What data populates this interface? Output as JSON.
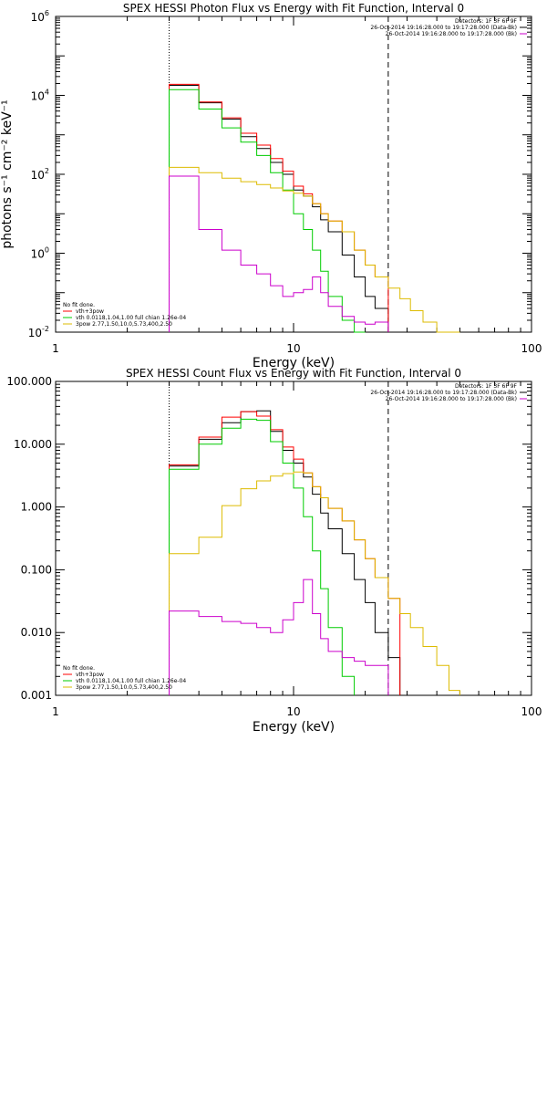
{
  "chart_data": [
    {
      "type": "line",
      "title": "SPEX HESSI Photon Flux vs Energy with Fit Function, Interval 0",
      "xlabel": "Energy (keV)",
      "ylabel": "photons s⁻¹ cm⁻² keV⁻¹",
      "x_scale": "log",
      "y_scale": "log",
      "xlim": [
        1,
        100
      ],
      "ylim": [
        0.01,
        1000000
      ],
      "x_ticks": [
        {
          "v": 1,
          "label": "1"
        },
        {
          "v": 10,
          "label": "10"
        },
        {
          "v": 100,
          "label": "100"
        }
      ],
      "y_ticks": [
        {
          "v": 0.01,
          "base": "10",
          "exp": "-2"
        },
        {
          "v": 1,
          "base": "10",
          "exp": "0"
        },
        {
          "v": 100,
          "base": "10",
          "exp": "2"
        },
        {
          "v": 10000,
          "base": "10",
          "exp": "4"
        },
        {
          "v": 1000000,
          "base": "10",
          "exp": "6"
        }
      ],
      "legend_header": [
        "Detectors: 1F 3F 6F 9F",
        "26-Oct-2014 19:16:28.000 to 19:17:28.000 (Data-Bk)",
        "26-Oct-2014 19:16:28.000 to 19:17:28.000 (Bk)"
      ],
      "legend_header_colors": [
        "",
        "#000000",
        "#cc00cc"
      ],
      "legend_fit": [
        "No fit done.",
        "vth+3pow",
        "vth 0.0118,1.04,1.00 full chian 1.26e-04",
        "3pow 2.77,1.50,10.0,5.73,400,2.50"
      ],
      "legend_fit_colors": [
        "",
        "#ff0000",
        "#00cc00",
        "#ddbb00"
      ],
      "vlines": [
        {
          "x": 3,
          "style": "dotted"
        },
        {
          "x": 25,
          "style": "dashed"
        }
      ],
      "edges": [
        3,
        4,
        5,
        6,
        7,
        8,
        9,
        10,
        11,
        12,
        13,
        14,
        16,
        18,
        20,
        22,
        25,
        28,
        31,
        35,
        40,
        45,
        50
      ],
      "series": [
        {
          "color": "#000000",
          "values": [
            18000,
            6500,
            2500,
            900,
            450,
            200,
            100,
            40,
            28,
            15,
            7,
            3.5,
            0.9,
            0.25,
            0.08,
            0.04,
            null,
            null,
            null,
            null,
            null,
            null
          ]
        },
        {
          "color": "#ff0000",
          "values": [
            19000,
            6800,
            2700,
            1100,
            550,
            250,
            120,
            50,
            32,
            18,
            10,
            6.5,
            3.5,
            1.2,
            0.5,
            0.25,
            null,
            null,
            null,
            null,
            null,
            null
          ]
        },
        {
          "color": "#00cc00",
          "values": [
            14000,
            4500,
            1500,
            650,
            300,
            110,
            40,
            10,
            4,
            1.2,
            0.35,
            0.08,
            0.02,
            0.008,
            null,
            null,
            null,
            null,
            null,
            null,
            null,
            null
          ]
        },
        {
          "color": "#ddbb00",
          "values": [
            150,
            110,
            80,
            65,
            55,
            45,
            38,
            33,
            28,
            18,
            10,
            6.5,
            3.5,
            1.2,
            0.5,
            0.25,
            0.13,
            0.07,
            0.035,
            0.018,
            0.01,
            0.005
          ]
        },
        {
          "color": "#cc00cc",
          "values": [
            90,
            4,
            1.2,
            0.5,
            0.3,
            0.15,
            0.08,
            0.1,
            0.12,
            0.25,
            0.1,
            0.045,
            0.025,
            0.018,
            0.016,
            0.018,
            null,
            null,
            null,
            null,
            null,
            null
          ]
        }
      ]
    },
    {
      "type": "line",
      "title": "SPEX HESSI Count Flux vs Energy with Fit Function, Interval 0",
      "xlabel": "Energy (keV)",
      "ylabel": "",
      "x_scale": "log",
      "y_scale": "log",
      "xlim": [
        1,
        100
      ],
      "ylim": [
        0.001,
        100
      ],
      "x_ticks": [
        {
          "v": 1,
          "label": "1"
        },
        {
          "v": 10,
          "label": "10"
        },
        {
          "v": 100,
          "label": "100"
        }
      ],
      "y_ticks": [
        {
          "v": 0.001,
          "label": "0.001"
        },
        {
          "v": 0.01,
          "label": "0.010"
        },
        {
          "v": 0.1,
          "label": "0.100"
        },
        {
          "v": 1,
          "label": "1.000"
        },
        {
          "v": 10,
          "label": "10.000"
        },
        {
          "v": 100,
          "label": "100.000"
        }
      ],
      "legend_header": [
        "Detectors: 1F 3F 6F 9F",
        "26-Oct-2014 19:16:28.000 to 19:17:28.000 (Data-Bk)",
        "26-Oct-2014 19:16:28.000 to 19:17:28.000 (Bk)"
      ],
      "legend_header_colors": [
        "",
        "#000000",
        "#cc00cc"
      ],
      "legend_fit": [
        "No fit done.",
        "vth+3pow",
        "vth 0.0118,1.04,1.00 full chian 1.26e-04",
        "3pow 2.77,1.50,10.0,5.73,400,2.50"
      ],
      "legend_fit_colors": [
        "",
        "#ff0000",
        "#00cc00",
        "#ddbb00"
      ],
      "vlines": [
        {
          "x": 3,
          "style": "dotted"
        },
        {
          "x": 25,
          "style": "dashed"
        }
      ],
      "edges": [
        3,
        4,
        5,
        6,
        7,
        8,
        9,
        10,
        11,
        12,
        13,
        14,
        16,
        18,
        20,
        22,
        25,
        28,
        31,
        35,
        40,
        45,
        50
      ],
      "series": [
        {
          "color": "#000000",
          "values": [
            4.5,
            12,
            22,
            33,
            34,
            16,
            8,
            5,
            3,
            1.6,
            0.8,
            0.45,
            0.18,
            0.07,
            0.03,
            0.01,
            0.004,
            null,
            null,
            null,
            null,
            null
          ]
        },
        {
          "color": "#ff0000",
          "values": [
            4.7,
            13,
            27,
            33,
            28,
            17,
            9,
            5.8,
            3.5,
            2.1,
            1.4,
            0.95,
            0.6,
            0.3,
            0.15,
            0.075,
            0.035,
            null,
            null,
            null,
            null,
            null
          ]
        },
        {
          "color": "#00cc00",
          "values": [
            4.0,
            10,
            18,
            25,
            24,
            11,
            5,
            2.0,
            0.7,
            0.2,
            0.05,
            0.012,
            0.002,
            null,
            null,
            null,
            null,
            null,
            null,
            null,
            null,
            null
          ]
        },
        {
          "color": "#ddbb00",
          "values": [
            0.18,
            0.33,
            1.05,
            1.95,
            2.6,
            3.1,
            3.4,
            3.6,
            3.5,
            2.1,
            1.4,
            0.95,
            0.6,
            0.3,
            0.15,
            0.075,
            0.035,
            0.02,
            0.012,
            0.006,
            0.003,
            0.0012
          ]
        },
        {
          "color": "#cc00cc",
          "values": [
            0.022,
            0.018,
            0.015,
            0.014,
            0.012,
            0.01,
            0.016,
            0.03,
            0.07,
            0.02,
            0.008,
            0.005,
            0.004,
            0.0035,
            0.003,
            0.003,
            null,
            null,
            null,
            null,
            null,
            null
          ]
        }
      ]
    }
  ]
}
